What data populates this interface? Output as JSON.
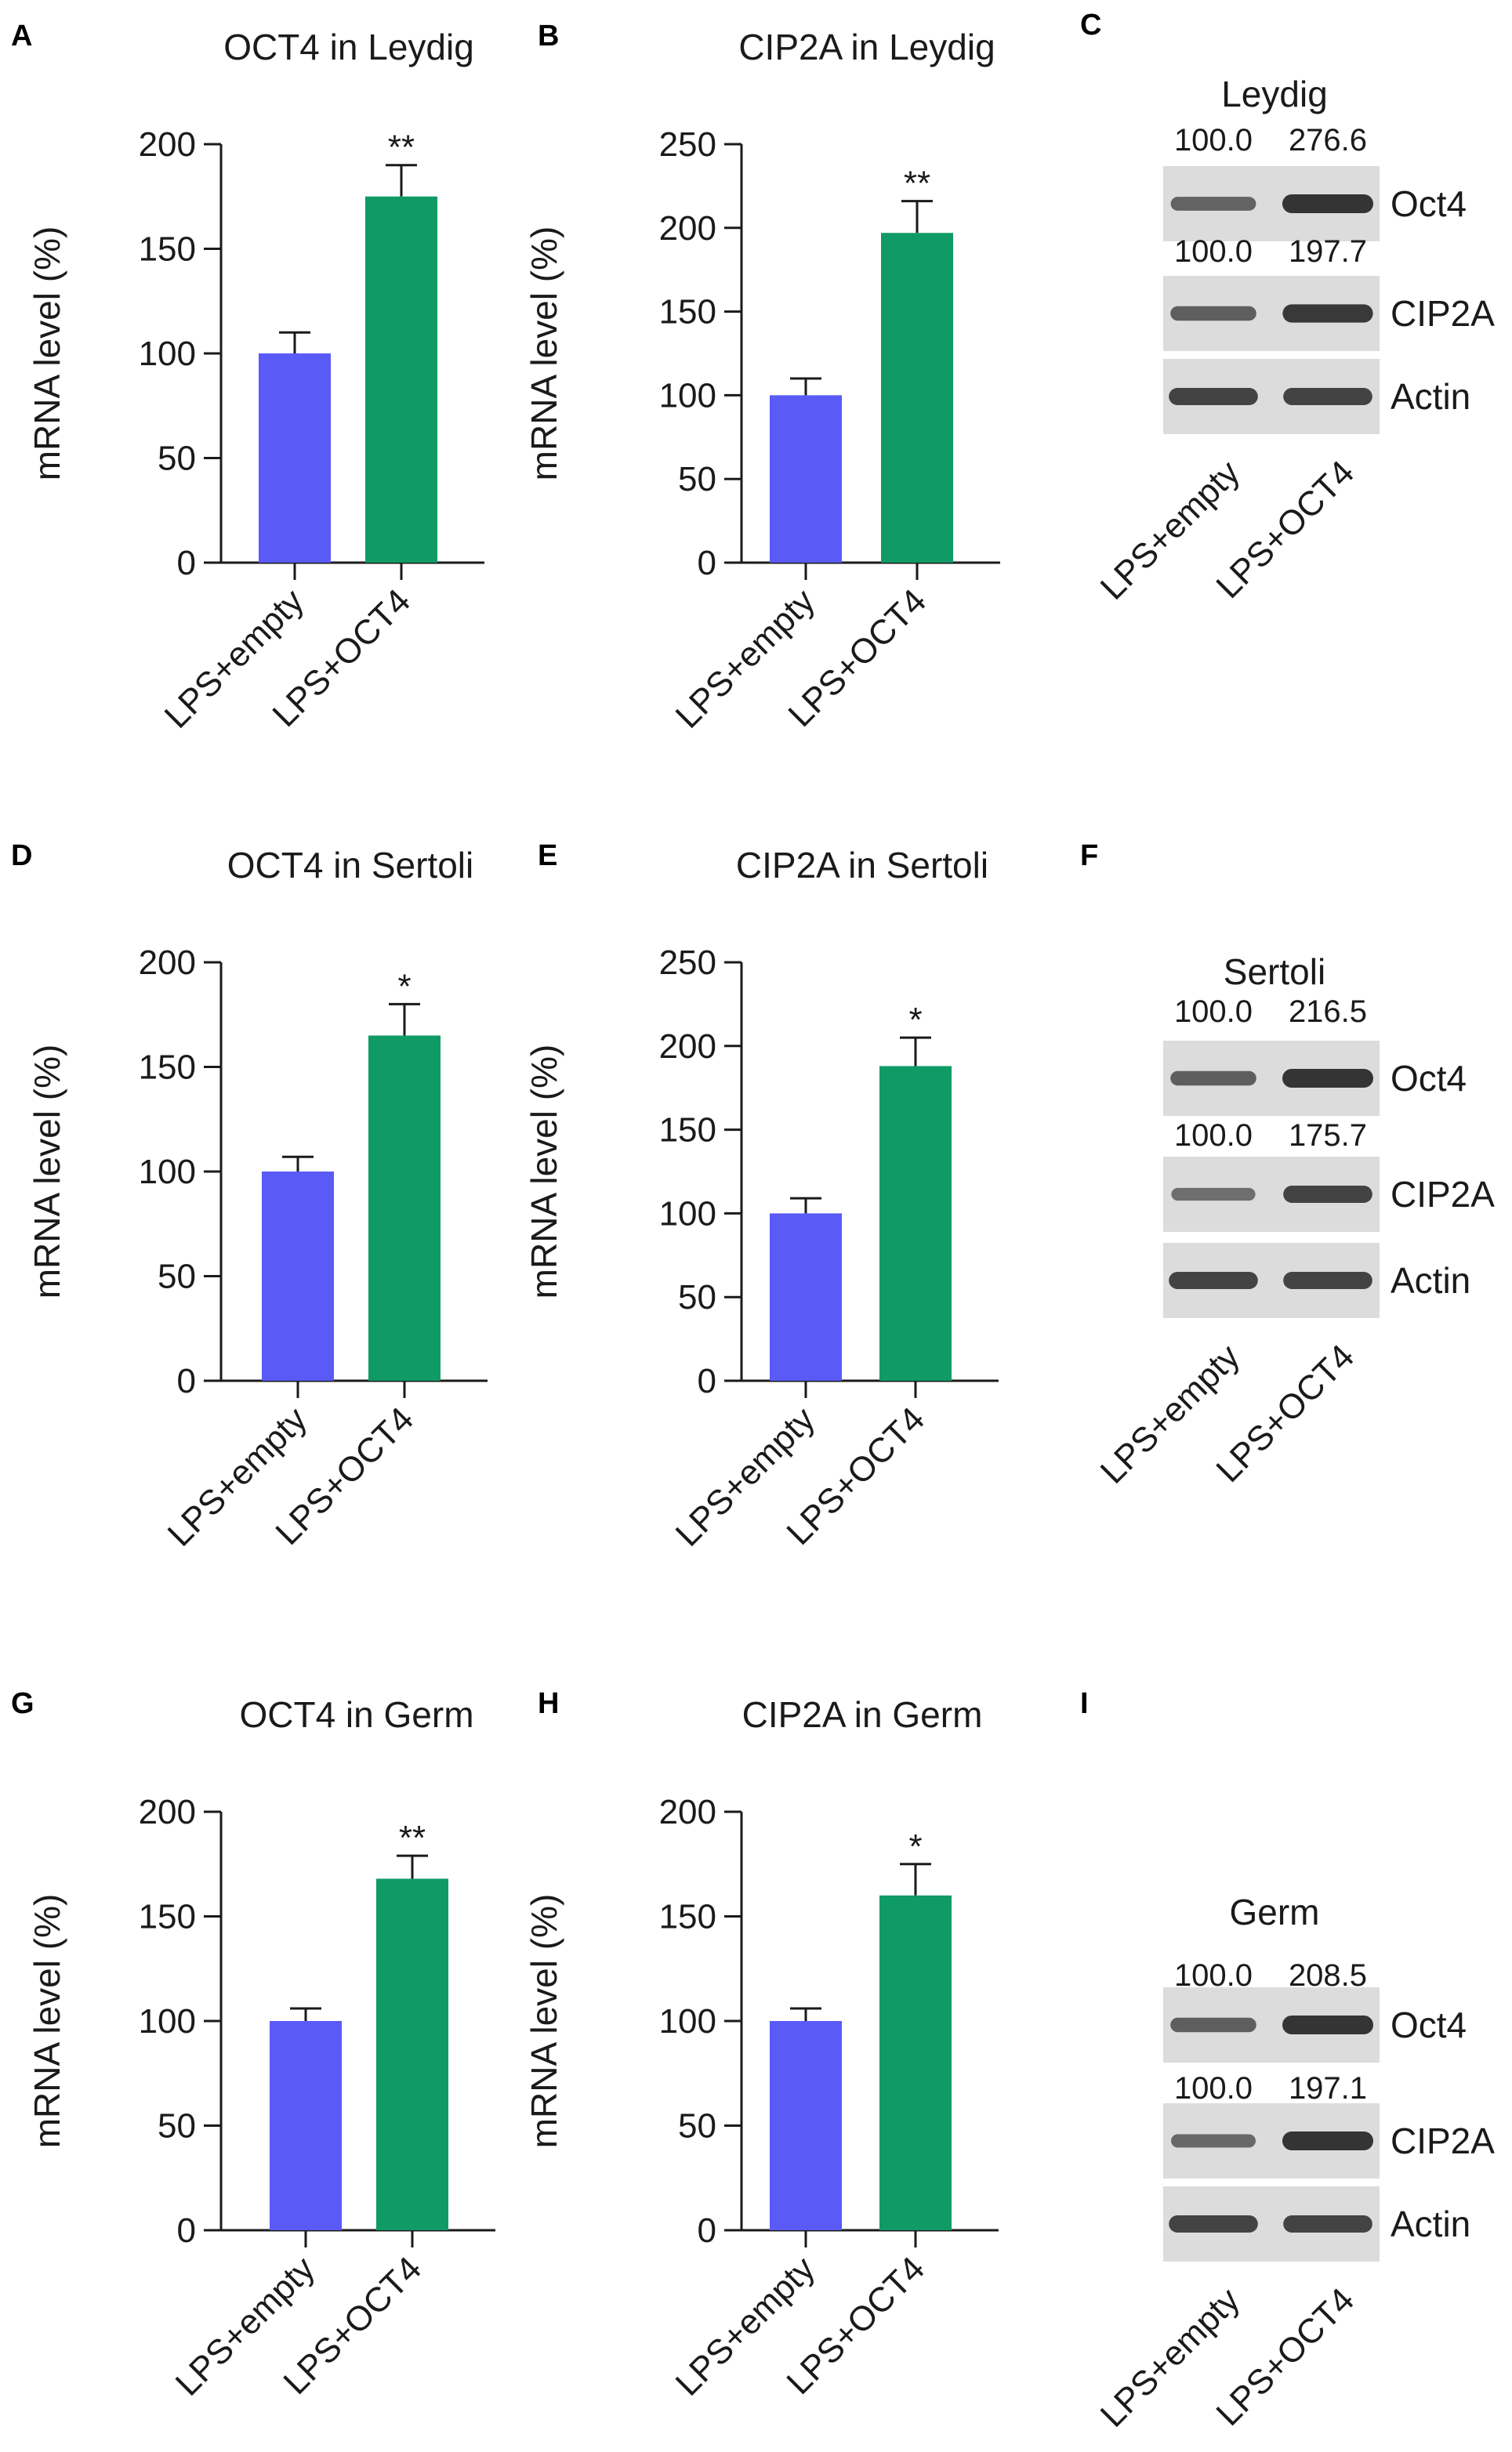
{
  "figure": {
    "colors": {
      "empty": "#5a5af7",
      "oct4": "#0f9a66",
      "axis": "#1a1a1a",
      "blot_bg": "#dcdcdc",
      "band": "#2a2a2a"
    }
  },
  "chart_data": [
    {
      "type": "bar",
      "panel": "A",
      "title": "OCT4 in Leydig",
      "ylabel": "mRNA level (%)",
      "xlabel": "",
      "categories": [
        "LPS+empty",
        "LPS+OCT4"
      ],
      "values": [
        100,
        175
      ],
      "errors": [
        10,
        15
      ],
      "significance": [
        "",
        "**"
      ],
      "ylim": [
        0,
        200
      ],
      "yticks": [
        0,
        50,
        100,
        150,
        200
      ]
    },
    {
      "type": "bar",
      "panel": "B",
      "title": "CIP2A in Leydig",
      "ylabel": "mRNA level (%)",
      "xlabel": "",
      "categories": [
        "LPS+empty",
        "LPS+OCT4"
      ],
      "values": [
        100,
        197
      ],
      "errors": [
        10,
        19
      ],
      "significance": [
        "",
        "**"
      ],
      "ylim": [
        0,
        250
      ],
      "yticks": [
        0,
        50,
        100,
        150,
        200,
        250
      ]
    },
    {
      "type": "bar",
      "panel": "D",
      "title": "OCT4 in Sertoli",
      "ylabel": "mRNA level (%)",
      "xlabel": "",
      "categories": [
        "LPS+empty",
        "LPS+OCT4"
      ],
      "values": [
        100,
        165
      ],
      "errors": [
        7,
        15
      ],
      "significance": [
        "",
        "*"
      ],
      "ylim": [
        0,
        200
      ],
      "yticks": [
        0,
        50,
        100,
        150,
        200
      ]
    },
    {
      "type": "bar",
      "panel": "E",
      "title": "CIP2A in Sertoli",
      "ylabel": "mRNA level (%)",
      "xlabel": "",
      "categories": [
        "LPS+empty",
        "LPS+OCT4"
      ],
      "values": [
        100,
        188
      ],
      "errors": [
        9,
        17
      ],
      "significance": [
        "",
        "*"
      ],
      "ylim": [
        0,
        250
      ],
      "yticks": [
        0,
        50,
        100,
        150,
        200,
        250
      ]
    },
    {
      "type": "bar",
      "panel": "G",
      "title": "OCT4 in Germ",
      "ylabel": "mRNA level (%)",
      "xlabel": "",
      "categories": [
        "LPS+empty",
        "LPS+OCT4"
      ],
      "values": [
        100,
        168
      ],
      "errors": [
        6,
        11
      ],
      "significance": [
        "",
        "**"
      ],
      "ylim": [
        0,
        200
      ],
      "yticks": [
        0,
        50,
        100,
        150,
        200
      ]
    },
    {
      "type": "bar",
      "panel": "H",
      "title": "CIP2A in Germ",
      "ylabel": "mRNA level (%)",
      "xlabel": "",
      "categories": [
        "LPS+empty",
        "LPS+OCT4"
      ],
      "values": [
        100,
        160
      ],
      "errors": [
        6,
        15
      ],
      "significance": [
        "",
        "*"
      ],
      "ylim": [
        0,
        200
      ],
      "yticks": [
        0,
        50,
        100,
        150,
        200
      ]
    }
  ],
  "western_blots": [
    {
      "panel": "C",
      "title": "Leydig",
      "lanes": [
        "LPS+empty",
        "LPS+OCT4"
      ],
      "rows": [
        {
          "label": "Oct4",
          "quant": [
            "100.0",
            "276.6"
          ],
          "intensity": [
            0.55,
            1.0
          ]
        },
        {
          "label": "CIP2A",
          "quant": [
            "100.0",
            "197.7"
          ],
          "intensity": [
            0.6,
            0.95
          ]
        },
        {
          "label": "Actin",
          "quant": null,
          "intensity": [
            0.85,
            0.85
          ]
        }
      ]
    },
    {
      "panel": "F",
      "title": "Sertoli",
      "lanes": [
        "LPS+empty",
        "LPS+OCT4"
      ],
      "rows": [
        {
          "label": "Oct4",
          "quant": [
            "100.0",
            "216.5"
          ],
          "intensity": [
            0.6,
            1.0
          ]
        },
        {
          "label": "CIP2A",
          "quant": [
            "100.0",
            "175.7"
          ],
          "intensity": [
            0.45,
            0.85
          ]
        },
        {
          "label": "Actin",
          "quant": null,
          "intensity": [
            0.85,
            0.85
          ]
        }
      ]
    },
    {
      "panel": "I",
      "title": "Germ",
      "lanes": [
        "LPS+empty",
        "LPS+OCT4"
      ],
      "rows": [
        {
          "label": "Oct4",
          "quant": [
            "100.0",
            "208.5"
          ],
          "intensity": [
            0.6,
            1.0
          ]
        },
        {
          "label": "CIP2A",
          "quant": [
            "100.0",
            "197.1"
          ],
          "intensity": [
            0.5,
            1.0
          ]
        },
        {
          "label": "Actin",
          "quant": null,
          "intensity": [
            0.85,
            0.85
          ]
        }
      ]
    }
  ]
}
